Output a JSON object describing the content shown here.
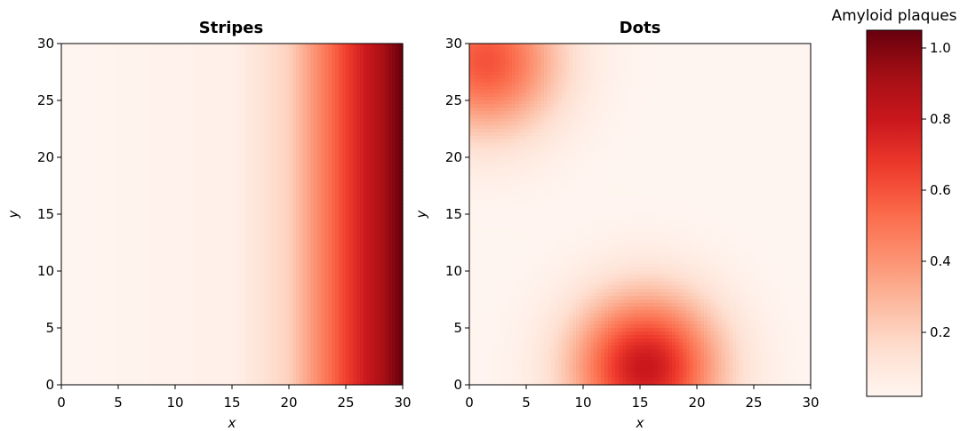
{
  "chart_data": [
    {
      "type": "heatmap",
      "title": "Stripes",
      "xlabel": "x",
      "ylabel": "y",
      "xlim": [
        0,
        30
      ],
      "ylim": [
        0,
        30
      ],
      "xticks": [
        "0",
        "5",
        "10",
        "15",
        "20",
        "25",
        "30"
      ],
      "yticks": [
        "0",
        "5",
        "10",
        "15",
        "20",
        "25",
        "30"
      ],
      "colormap": "Reds",
      "field": {
        "kind": "x-gradient",
        "description_points": [
          {
            "x": 0,
            "value": 0.02
          },
          {
            "x": 15,
            "value": 0.05
          },
          {
            "x": 20,
            "value": 0.2
          },
          {
            "x": 25,
            "value": 0.65
          },
          {
            "x": 30,
            "value": 1.05
          }
        ]
      }
    },
    {
      "type": "heatmap",
      "title": "Dots",
      "xlabel": "x",
      "ylabel": "y",
      "xlim": [
        0,
        30
      ],
      "ylim": [
        0,
        30
      ],
      "xticks": [
        "0",
        "5",
        "10",
        "15",
        "20",
        "25",
        "30"
      ],
      "yticks": [
        "0",
        "5",
        "10",
        "15",
        "20",
        "25",
        "30"
      ],
      "colormap": "Reds",
      "field": {
        "kind": "gaussian-blobs",
        "baseline": 0.02,
        "blobs": [
          {
            "x": 1.5,
            "y": 28.5,
            "amplitude": 0.58,
            "sigma": 4.5
          },
          {
            "x": 15.5,
            "y": 1.5,
            "amplitude": 0.78,
            "sigma": 4.5
          }
        ]
      }
    }
  ],
  "colorbar": {
    "title": "Amyloid plaques",
    "range": [
      0.02,
      1.05
    ],
    "ticks": [
      "0.2",
      "0.4",
      "0.6",
      "0.8",
      "1.0"
    ],
    "tick_values": [
      0.2,
      0.4,
      0.6,
      0.8,
      1.0
    ]
  }
}
